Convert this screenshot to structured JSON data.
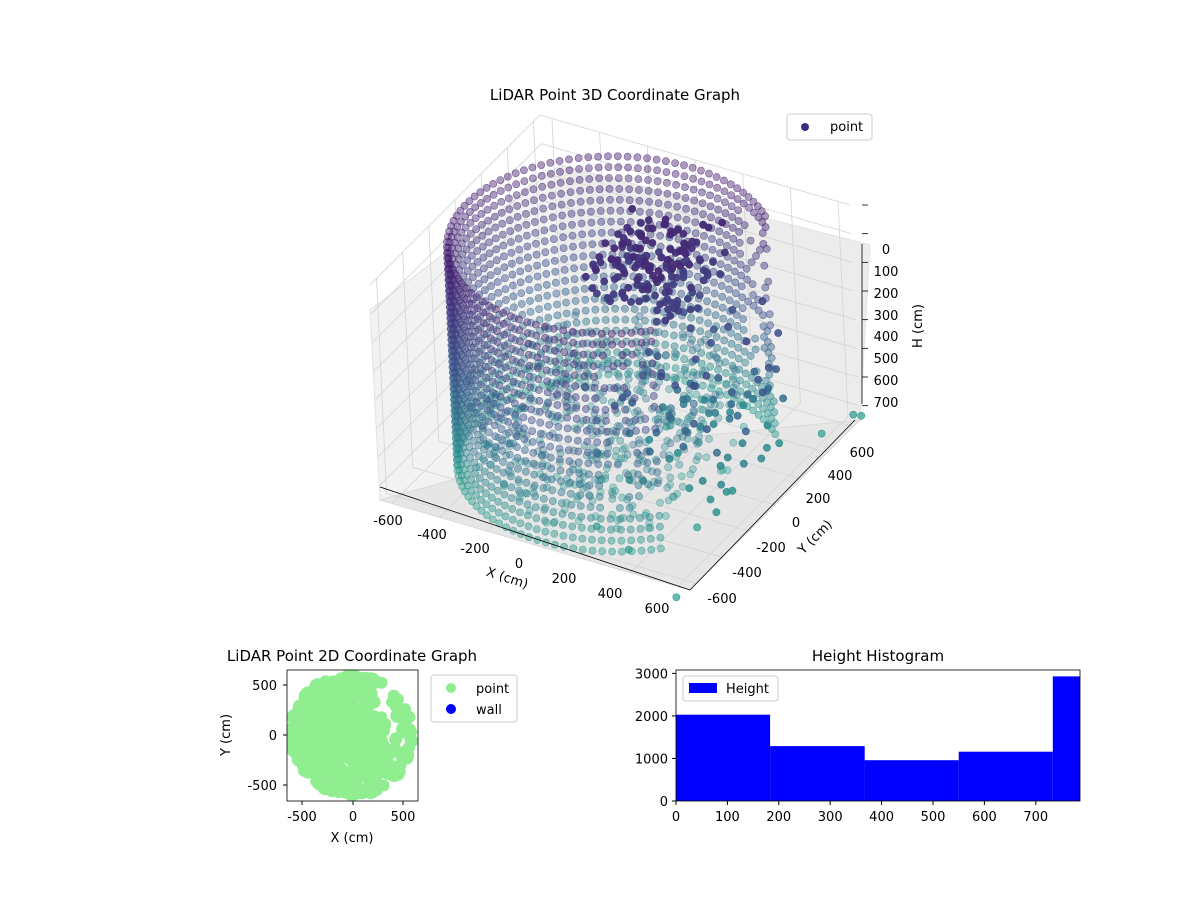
{
  "chart_data": [
    {
      "type": "scatter",
      "projection": "3d",
      "title": "LiDAR Point 3D Coordinate Graph",
      "xlabel": "X (cm)",
      "ylabel": "Y (cm)",
      "zlabel": "H (cm)",
      "xlim": [
        -650,
        650
      ],
      "ylim": [
        -650,
        650
      ],
      "zlim": [
        750,
        0
      ],
      "z_axis_inverted": true,
      "x_ticks": [
        "-600",
        "-400",
        "-200",
        "0",
        "200",
        "400",
        "600"
      ],
      "y_ticks": [
        "-600",
        "-400",
        "-200",
        "0",
        "200",
        "400",
        "600"
      ],
      "z_ticks": [
        "0",
        "100",
        "200",
        "300",
        "400",
        "500",
        "600",
        "700"
      ],
      "legend": [
        "point"
      ],
      "legend_placement": "top-right",
      "grid": true,
      "colormap": "viridis",
      "colors": {
        "high": "#481f70",
        "mid": "#3b528b",
        "low": "#2a9d8f",
        "floor": "#35b779",
        "legend_marker": "#3e2a7a"
      },
      "outlier_points": [
        {
          "x": 640,
          "y": 620,
          "h": 720
        },
        {
          "x": 650,
          "y": 660,
          "h": 740
        },
        {
          "x": 560,
          "y": 520,
          "h": 760
        },
        {
          "x": 460,
          "y": -250,
          "h": 760
        },
        {
          "x": 310,
          "y": -500,
          "h": 760
        },
        {
          "x": 620,
          "y": -700,
          "h": 760
        },
        {
          "x": 150,
          "y": -450,
          "h": 740
        }
      ]
    },
    {
      "type": "scatter",
      "title": "LiDAR Point 2D Coordinate Graph",
      "xlabel": "X (cm)",
      "ylabel": "Y (cm)",
      "xlim": [
        -650,
        650
      ],
      "ylim": [
        -650,
        650
      ],
      "x_ticks": [
        "-500",
        "0",
        "500"
      ],
      "y_ticks": [
        "500",
        "0",
        "-500"
      ],
      "legend": [
        "point",
        "wall"
      ],
      "legend_placement": "outside-right",
      "grid": false,
      "colors": {
        "point": "#90ee90",
        "wall": "#0000ff"
      }
    },
    {
      "type": "bar",
      "subtype": "histogram",
      "title": "Height Histogram",
      "series": [
        {
          "name": "Height",
          "bin_edges": [
            0,
            183,
            367,
            550,
            733,
            786
          ],
          "values": [
            2030,
            1290,
            960,
            1160,
            2930
          ]
        }
      ],
      "xlim": [
        0,
        786
      ],
      "ylim": [
        0,
        3080
      ],
      "x_ticks": [
        "0",
        "100",
        "200",
        "300",
        "400",
        "500",
        "600",
        "700"
      ],
      "y_ticks": [
        "0",
        "1000",
        "2000",
        "3000"
      ],
      "legend": [
        "Height"
      ],
      "legend_placement": "top-left",
      "grid": false,
      "colors": {
        "bars": "#0000ff"
      }
    }
  ]
}
